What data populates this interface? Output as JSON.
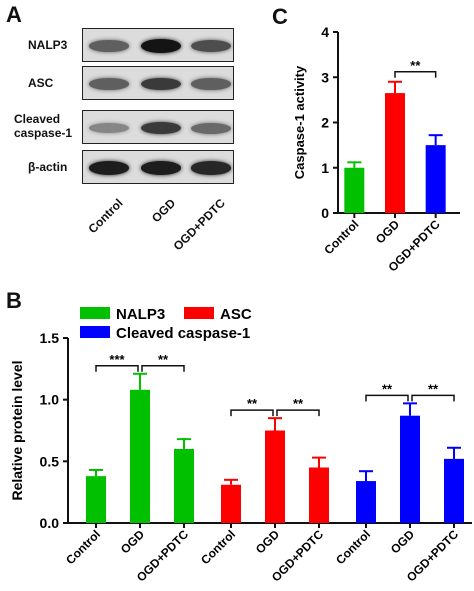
{
  "panels": {
    "a": "A",
    "b": "B",
    "c": "C"
  },
  "blot": {
    "rows": [
      {
        "label": "NALP3",
        "bands": [
          0.55,
          0.95,
          0.65
        ]
      },
      {
        "label": "ASC",
        "bands": [
          0.55,
          0.75,
          0.55
        ]
      },
      {
        "label": "Cleaved caspase-1",
        "bands": [
          0.35,
          0.75,
          0.5
        ]
      },
      {
        "label": "β-actin",
        "bands": [
          0.9,
          0.9,
          0.85
        ]
      }
    ],
    "lanes": [
      "Control",
      "OGD",
      "OGD+PDTC"
    ]
  },
  "colors": {
    "green": "#00c000",
    "red": "#ff0000",
    "blue": "#0000ff"
  },
  "chart_data": [
    {
      "id": "c",
      "type": "bar",
      "categories": [
        "Control",
        "OGD",
        "OGD+PDTC"
      ],
      "values": [
        1.0,
        2.65,
        1.5
      ],
      "errors": [
        0.12,
        0.25,
        0.22
      ],
      "colors": [
        "#00c000",
        "#ff0000",
        "#0000ff"
      ],
      "ylabel": "Caspase-1 activity",
      "ylim": [
        0,
        4
      ],
      "yticks": [
        "0",
        "1",
        "2",
        "3",
        "4"
      ],
      "significance": [
        {
          "from": 1,
          "to": 2,
          "label": "**"
        }
      ],
      "grid": false
    },
    {
      "id": "b",
      "type": "bar",
      "ylabel": "Relative protein level",
      "ylim": [
        0,
        1.5
      ],
      "yticks": [
        "0.0",
        "0.5",
        "1.0",
        "1.5"
      ],
      "legend": {
        "position": "top-left",
        "entries": [
          "NALP3",
          "ASC",
          "Cleaved caspase-1"
        ]
      },
      "categories": [
        "Control",
        "OGD",
        "OGD+PDTC"
      ],
      "groups": [
        {
          "name": "NALP3",
          "color": "#00c000",
          "values": [
            0.38,
            1.08,
            0.6
          ],
          "errors": [
            0.05,
            0.13,
            0.08
          ],
          "significance": [
            {
              "from": 0,
              "to": 1,
              "label": "***"
            },
            {
              "from": 1,
              "to": 2,
              "label": "**"
            }
          ]
        },
        {
          "name": "ASC",
          "color": "#ff0000",
          "values": [
            0.31,
            0.75,
            0.45
          ],
          "errors": [
            0.04,
            0.1,
            0.08
          ],
          "significance": [
            {
              "from": 0,
              "to": 1,
              "label": "**"
            },
            {
              "from": 1,
              "to": 2,
              "label": "**"
            }
          ]
        },
        {
          "name": "Cleaved caspase-1",
          "color": "#0000ff",
          "values": [
            0.34,
            0.87,
            0.52
          ],
          "errors": [
            0.08,
            0.1,
            0.09
          ],
          "significance": [
            {
              "from": 0,
              "to": 1,
              "label": "**"
            },
            {
              "from": 1,
              "to": 2,
              "label": "**"
            }
          ]
        }
      ],
      "grid": false
    }
  ]
}
